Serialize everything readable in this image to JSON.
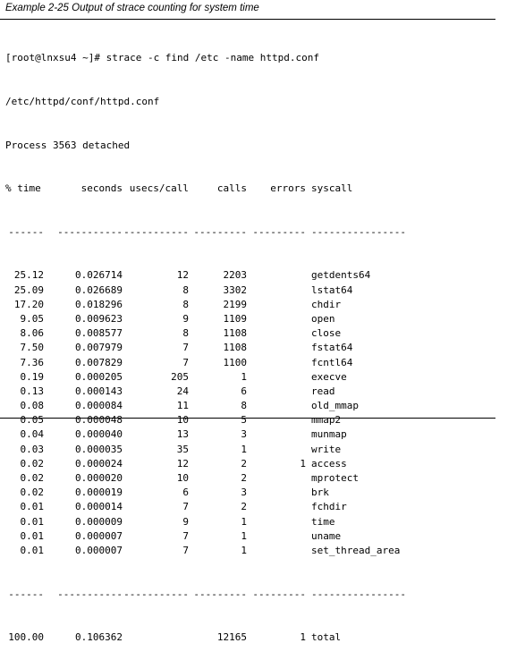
{
  "caption": "Example 2-25   Output of strace counting for system time",
  "command_lines": [
    "[root@lnxsu4 ~]# strace -c find /etc -name httpd.conf",
    "/etc/httpd/conf/httpd.conf",
    "Process 3563 detached"
  ],
  "headers": {
    "time": "% time",
    "seconds": "seconds",
    "usecs": "usecs/call",
    "calls": "calls",
    "errors": "errors",
    "syscall": "syscall"
  },
  "separator": {
    "time": "------",
    "seconds": "-----------",
    "usecs": "-----------",
    "calls": "---------",
    "errors": "---------",
    "syscall": "----------------"
  },
  "rows": [
    {
      "time": "25.12",
      "seconds": "0.026714",
      "usecs": "12",
      "calls": "2203",
      "errors": "",
      "syscall": "getdents64"
    },
    {
      "time": "25.09",
      "seconds": "0.026689",
      "usecs": "8",
      "calls": "3302",
      "errors": "",
      "syscall": "lstat64"
    },
    {
      "time": "17.20",
      "seconds": "0.018296",
      "usecs": "8",
      "calls": "2199",
      "errors": "",
      "syscall": "chdir"
    },
    {
      "time": "9.05",
      "seconds": "0.009623",
      "usecs": "9",
      "calls": "1109",
      "errors": "",
      "syscall": "open"
    },
    {
      "time": "8.06",
      "seconds": "0.008577",
      "usecs": "8",
      "calls": "1108",
      "errors": "",
      "syscall": "close"
    },
    {
      "time": "7.50",
      "seconds": "0.007979",
      "usecs": "7",
      "calls": "1108",
      "errors": "",
      "syscall": "fstat64"
    },
    {
      "time": "7.36",
      "seconds": "0.007829",
      "usecs": "7",
      "calls": "1100",
      "errors": "",
      "syscall": "fcntl64"
    },
    {
      "time": "0.19",
      "seconds": "0.000205",
      "usecs": "205",
      "calls": "1",
      "errors": "",
      "syscall": "execve"
    },
    {
      "time": "0.13",
      "seconds": "0.000143",
      "usecs": "24",
      "calls": "6",
      "errors": "",
      "syscall": "read"
    },
    {
      "time": "0.08",
      "seconds": "0.000084",
      "usecs": "11",
      "calls": "8",
      "errors": "",
      "syscall": "old_mmap"
    },
    {
      "time": "0.05",
      "seconds": "0.000048",
      "usecs": "10",
      "calls": "5",
      "errors": "",
      "syscall": "mmap2"
    },
    {
      "time": "0.04",
      "seconds": "0.000040",
      "usecs": "13",
      "calls": "3",
      "errors": "",
      "syscall": "munmap"
    },
    {
      "time": "0.03",
      "seconds": "0.000035",
      "usecs": "35",
      "calls": "1",
      "errors": "",
      "syscall": "write"
    },
    {
      "time": "0.02",
      "seconds": "0.000024",
      "usecs": "12",
      "calls": "2",
      "errors": "1",
      "syscall": "access"
    },
    {
      "time": "0.02",
      "seconds": "0.000020",
      "usecs": "10",
      "calls": "2",
      "errors": "",
      "syscall": "mprotect"
    },
    {
      "time": "0.02",
      "seconds": "0.000019",
      "usecs": "6",
      "calls": "3",
      "errors": "",
      "syscall": "brk"
    },
    {
      "time": "0.01",
      "seconds": "0.000014",
      "usecs": "7",
      "calls": "2",
      "errors": "",
      "syscall": "fchdir"
    },
    {
      "time": "0.01",
      "seconds": "0.000009",
      "usecs": "9",
      "calls": "1",
      "errors": "",
      "syscall": "time"
    },
    {
      "time": "0.01",
      "seconds": "0.000007",
      "usecs": "7",
      "calls": "1",
      "errors": "",
      "syscall": "uname"
    },
    {
      "time": "0.01",
      "seconds": "0.000007",
      "usecs": "7",
      "calls": "1",
      "errors": "",
      "syscall": "set_thread_area"
    }
  ],
  "total": {
    "time": "100.00",
    "seconds": "0.106362",
    "usecs": "",
    "calls": "12165",
    "errors": "1",
    "syscall": "total"
  }
}
